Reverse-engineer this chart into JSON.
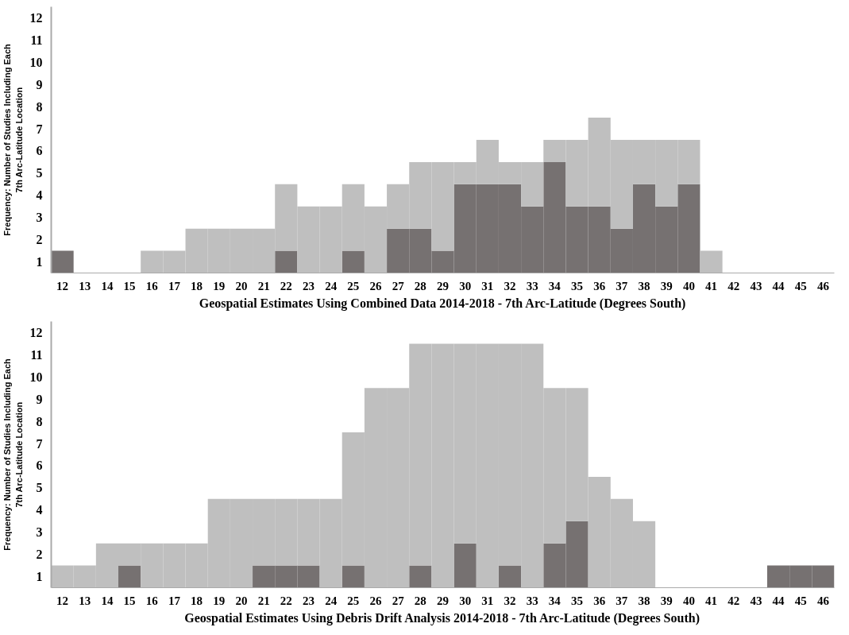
{
  "chart_data": [
    {
      "type": "bar",
      "stacked": true,
      "xlabel": "Geospatial Estimates Using Combined Data 2014-2018 - 7th Arc-Latitude (Degrees South)",
      "ylabel": "Frequency: Number of Studies Including Each\n7th Arc-Latitude Location",
      "categories": [
        "12",
        "13",
        "14",
        "15",
        "16",
        "17",
        "18",
        "19",
        "20",
        "21",
        "22",
        "23",
        "24",
        "25",
        "26",
        "27",
        "28",
        "29",
        "30",
        "31",
        "32",
        "33",
        "34",
        "35",
        "36",
        "37",
        "38",
        "39",
        "40",
        "41",
        "42",
        "43",
        "44",
        "45",
        "46"
      ],
      "ylim": [
        0,
        12
      ],
      "yticks": [
        {
          "value": 0.5,
          "label": "1"
        },
        {
          "value": 1.5,
          "label": "2"
        },
        {
          "value": 2.5,
          "label": "3"
        },
        {
          "value": 3.5,
          "label": "4"
        },
        {
          "value": 4.5,
          "label": "5"
        },
        {
          "value": 5.5,
          "label": "6"
        },
        {
          "value": 6.5,
          "label": "7"
        },
        {
          "value": 7.5,
          "label": "8"
        },
        {
          "value": 8.5,
          "label": "9"
        },
        {
          "value": 9.5,
          "label": "10"
        },
        {
          "value": 10.5,
          "label": "11"
        },
        {
          "value": 11.5,
          "label": "12"
        }
      ],
      "grid": false,
      "series": [
        {
          "color": "#767171",
          "values": [
            1,
            0,
            0,
            0,
            0,
            0,
            0,
            0,
            0,
            0,
            1,
            0,
            0,
            1,
            0,
            2,
            2,
            1,
            4,
            4,
            4,
            3,
            5,
            3,
            3,
            2,
            4,
            3,
            4,
            0,
            0,
            0,
            0,
            0,
            0
          ]
        },
        {
          "color": "#bfbfbf",
          "values": [
            0,
            0,
            0,
            0,
            1,
            1,
            2,
            2,
            2,
            2,
            3,
            3,
            3,
            3,
            3,
            2,
            3,
            4,
            1,
            2,
            1,
            2,
            1,
            3,
            4,
            4,
            2,
            3,
            2,
            1,
            0,
            0,
            0,
            0,
            0
          ]
        }
      ]
    },
    {
      "type": "bar",
      "stacked": true,
      "xlabel": "Geospatial Estimates Using Debris Drift Analysis 2014-2018 - 7th Arc-Latitude (Degrees South)",
      "ylabel": "Frequency: Number of Studies Including Each\n7th Arc-Latitude Location",
      "categories": [
        "12",
        "13",
        "14",
        "15",
        "16",
        "17",
        "18",
        "19",
        "20",
        "21",
        "22",
        "23",
        "24",
        "25",
        "26",
        "27",
        "28",
        "29",
        "30",
        "31",
        "32",
        "33",
        "34",
        "35",
        "36",
        "37",
        "38",
        "39",
        "40",
        "41",
        "42",
        "43",
        "44",
        "45",
        "46"
      ],
      "ylim": [
        0,
        12
      ],
      "yticks": [
        {
          "value": 0.5,
          "label": "1"
        },
        {
          "value": 1.5,
          "label": "2"
        },
        {
          "value": 2.5,
          "label": "3"
        },
        {
          "value": 3.5,
          "label": "4"
        },
        {
          "value": 4.5,
          "label": "5"
        },
        {
          "value": 5.5,
          "label": "6"
        },
        {
          "value": 6.5,
          "label": "7"
        },
        {
          "value": 7.5,
          "label": "8"
        },
        {
          "value": 8.5,
          "label": "9"
        },
        {
          "value": 9.5,
          "label": "10"
        },
        {
          "value": 10.5,
          "label": "11"
        },
        {
          "value": 11.5,
          "label": "12"
        }
      ],
      "grid": false,
      "series": [
        {
          "color": "#767171",
          "values": [
            0,
            0,
            0,
            1,
            0,
            0,
            0,
            0,
            0,
            1,
            1,
            1,
            0,
            1,
            0,
            0,
            1,
            0,
            2,
            0,
            1,
            0,
            2,
            3,
            0,
            0,
            0,
            0,
            0,
            0,
            0,
            0,
            1,
            1,
            1
          ]
        },
        {
          "color": "#bfbfbf",
          "values": [
            1,
            1,
            2,
            1,
            2,
            2,
            2,
            4,
            4,
            3,
            3,
            3,
            4,
            6,
            9,
            9,
            10,
            11,
            9,
            11,
            10,
            11,
            7,
            6,
            5,
            4,
            3,
            0,
            0,
            0,
            0,
            0,
            0,
            0,
            0
          ]
        }
      ]
    }
  ]
}
